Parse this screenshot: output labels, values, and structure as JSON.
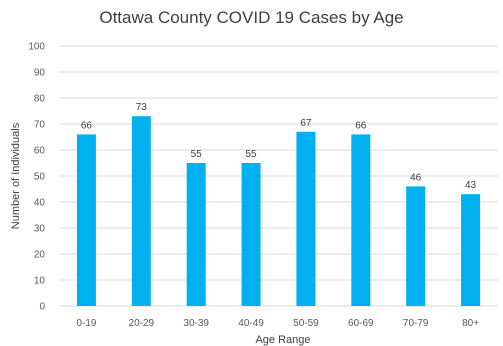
{
  "chart_data": {
    "type": "bar",
    "title": "Ottawa County COVID 19 Cases by Age",
    "xlabel": "Age Range",
    "ylabel": "Number of Individuals",
    "categories": [
      "0-19",
      "20-29",
      "30-39",
      "40-49",
      "50-59",
      "60-69",
      "70-79",
      "80+"
    ],
    "values": [
      66,
      73,
      55,
      55,
      67,
      66,
      46,
      43
    ],
    "ylim": [
      0,
      100
    ],
    "yticks": [
      0,
      10,
      20,
      30,
      40,
      50,
      60,
      70,
      80,
      90,
      100
    ],
    "grid": true,
    "legend": "none",
    "bar_color": "#00b0f0",
    "data_labels": true
  }
}
